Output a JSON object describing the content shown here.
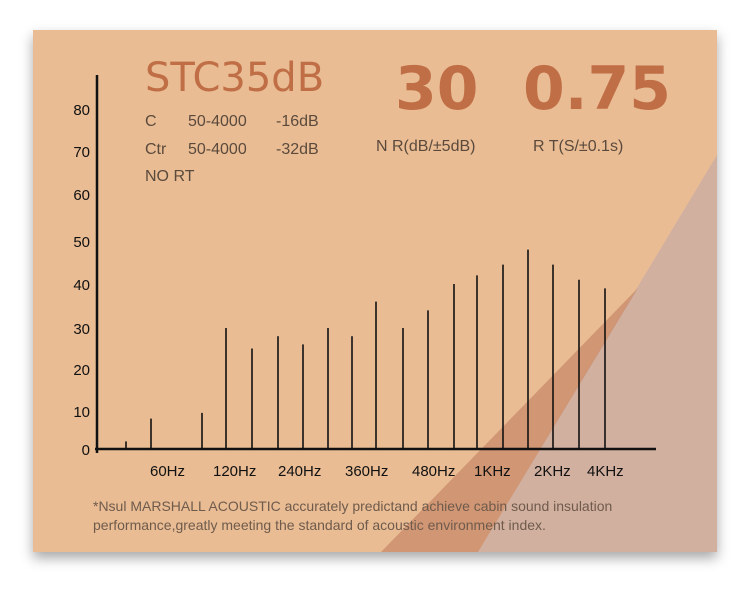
{
  "header": {
    "stc": "STC35dB",
    "nr_value": "30",
    "rt_value": "0.75",
    "nr_label": "N R(dB/±5dB)",
    "rt_label": "R T(S/±0.1s)",
    "info_rows": [
      {
        "name": "C",
        "range": "50-4000",
        "value": "-16dB"
      },
      {
        "name": "Ctr",
        "range": "50-4000",
        "value": "-32dB"
      },
      {
        "name": "NO RT",
        "range": "",
        "value": ""
      }
    ]
  },
  "chart_data": {
    "type": "bar",
    "title": "",
    "xlabel": "",
    "ylabel": "",
    "y_ticks": [
      0,
      10,
      20,
      30,
      40,
      50,
      60,
      70,
      80
    ],
    "ylim": [
      0,
      88
    ],
    "x_tick_labels": [
      "60Hz",
      "120Hz",
      "240Hz",
      "360Hz",
      "480Hz",
      "1KHz",
      "2KHz",
      "4KHz"
    ],
    "values": [
      2,
      8,
      9.5,
      30,
      25,
      28,
      26,
      30,
      28,
      36,
      30,
      34,
      40,
      42,
      44.5,
      48,
      44.5,
      41,
      39
    ],
    "grid": false
  },
  "footnote": {
    "line1": "*Nsul MARSHALL ACOUSTIC accurately predictand achieve cabin sound insulation",
    "line2": "performance,greatly meeting the standard of acoustic environment index."
  },
  "colors": {
    "background": "#e9bc94",
    "accent": "#c06e45",
    "overlay_light": "#cfaea1",
    "overlay_dark": "#c88a6a"
  }
}
